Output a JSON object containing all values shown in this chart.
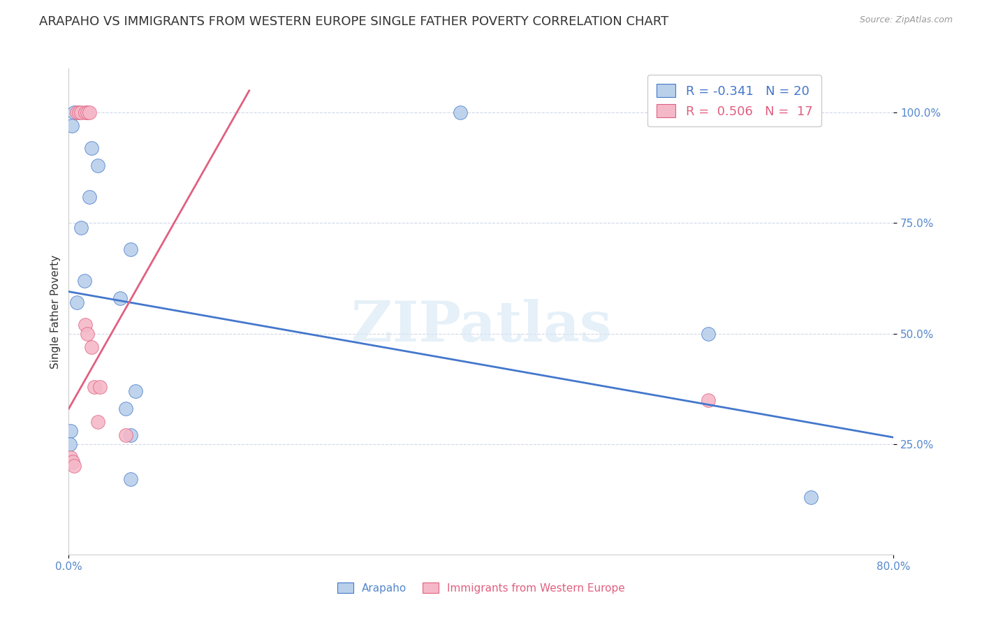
{
  "title": "ARAPAHO VS IMMIGRANTS FROM WESTERN EUROPE SINGLE FATHER POVERTY CORRELATION CHART",
  "source": "Source: ZipAtlas.com",
  "ylabel": "Single Father Poverty",
  "watermark": "ZIPatlas",
  "legend_label_blue": "Arapaho",
  "legend_label_pink": "Immigrants from Western Europe",
  "R_blue": -0.341,
  "N_blue": 20,
  "R_pink": 0.506,
  "N_pink": 17,
  "x_min": 0.0,
  "x_max": 0.8,
  "y_min": 0.0,
  "y_max": 1.1,
  "y_ticks": [
    0.25,
    0.5,
    0.75,
    1.0
  ],
  "y_tick_labels": [
    "25.0%",
    "50.0%",
    "75.0%",
    "100.0%"
  ],
  "blue_x": [
    0.005,
    0.003,
    0.022,
    0.028,
    0.02,
    0.012,
    0.06,
    0.015,
    0.008,
    0.05,
    0.065,
    0.002,
    0.001,
    0.003,
    0.055,
    0.06,
    0.38,
    0.62,
    0.72,
    0.06
  ],
  "blue_y": [
    1.0,
    0.97,
    0.92,
    0.88,
    0.81,
    0.74,
    0.69,
    0.62,
    0.57,
    0.58,
    0.37,
    0.28,
    0.25,
    0.21,
    0.33,
    0.27,
    1.0,
    0.5,
    0.13,
    0.17
  ],
  "pink_x": [
    0.008,
    0.01,
    0.012,
    0.016,
    0.018,
    0.02,
    0.016,
    0.018,
    0.022,
    0.025,
    0.028,
    0.03,
    0.055,
    0.002,
    0.004,
    0.005,
    0.62
  ],
  "pink_y": [
    1.0,
    1.0,
    1.0,
    1.0,
    1.0,
    1.0,
    0.52,
    0.5,
    0.47,
    0.38,
    0.3,
    0.38,
    0.27,
    0.22,
    0.21,
    0.2,
    0.35
  ],
  "blue_line_x": [
    0.0,
    0.8
  ],
  "blue_line_y": [
    0.595,
    0.265
  ],
  "pink_line_x": [
    0.0,
    0.175
  ],
  "pink_line_y": [
    0.33,
    1.05
  ],
  "bg_color": "#ffffff",
  "blue_color": "#b8d0ea",
  "pink_color": "#f5b8c8",
  "blue_line_color": "#4477cc",
  "pink_line_color": "#e06080",
  "grid_color": "#d0d8e8",
  "axis_label_color": "#5588cc",
  "title_color": "#333333",
  "title_fontsize": 13,
  "axis_fontsize": 11,
  "tick_fontsize": 11,
  "legend_fontsize": 13
}
